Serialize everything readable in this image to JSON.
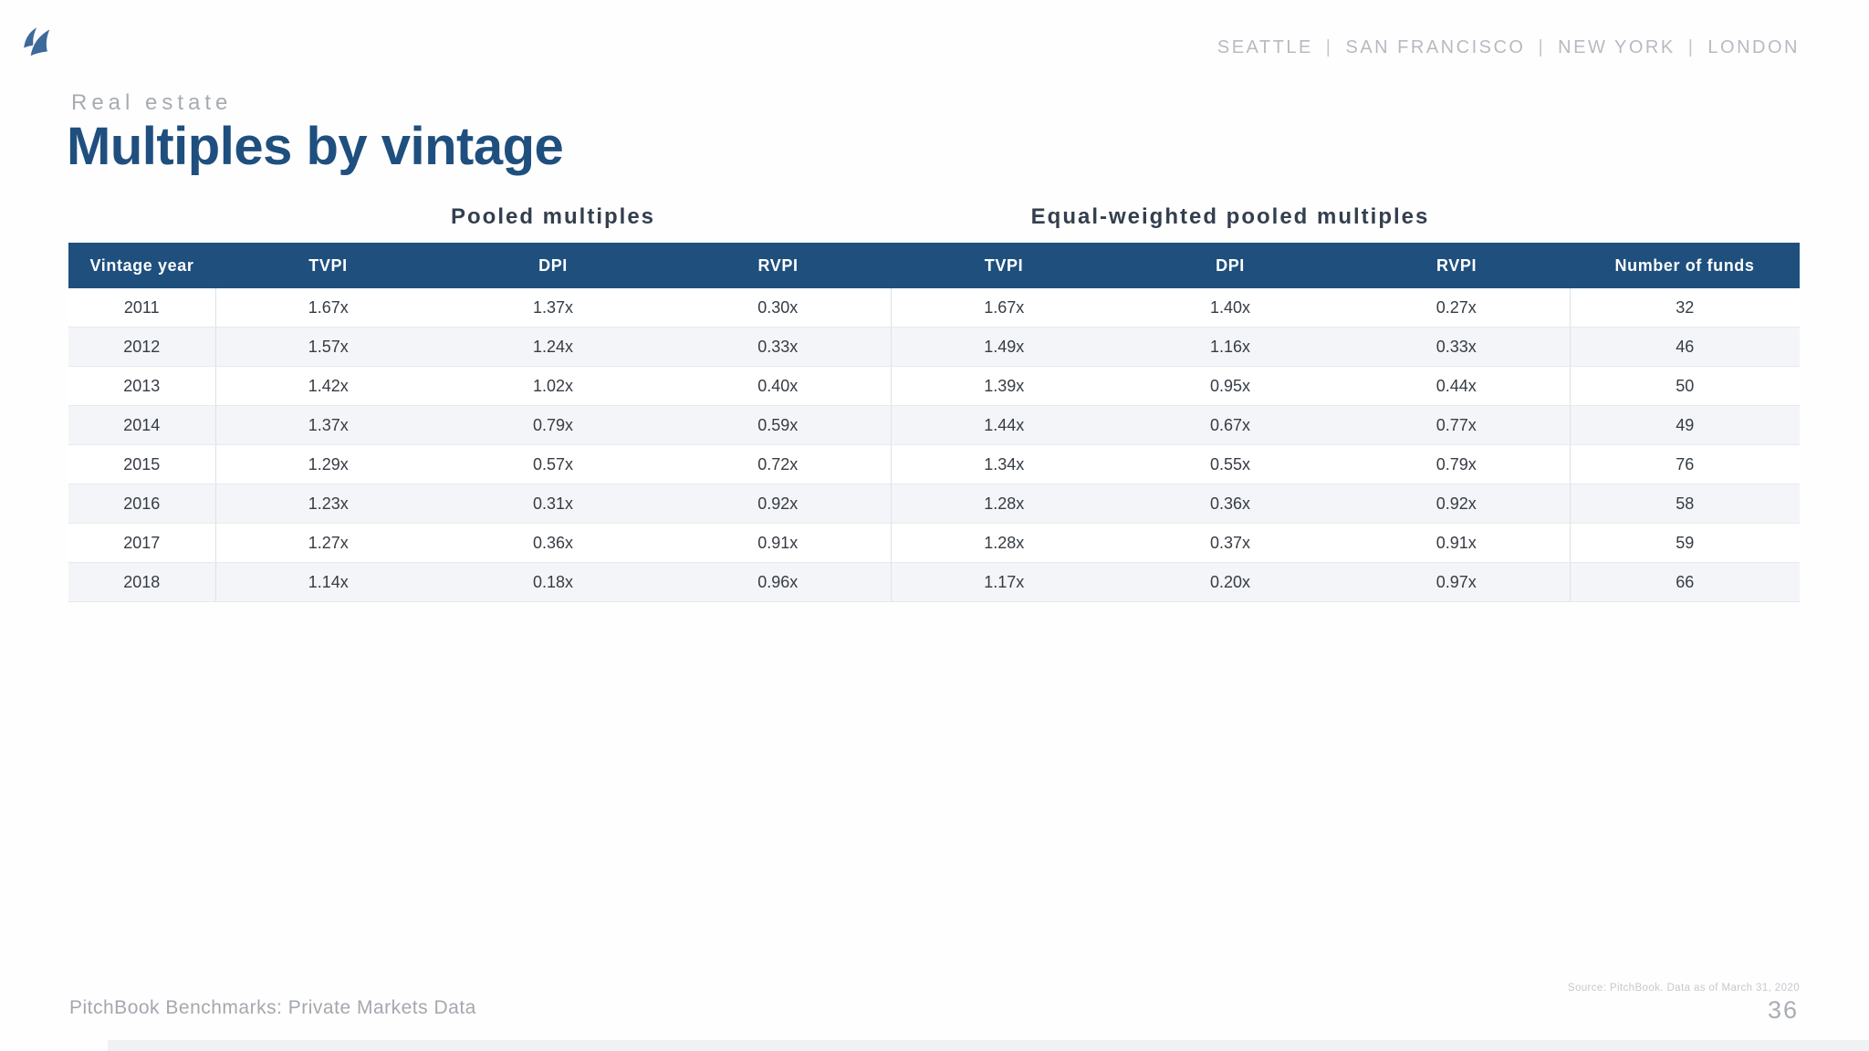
{
  "header": {
    "cities": [
      "SEATTLE",
      "SAN FRANCISCO",
      "NEW YORK",
      "LONDON"
    ]
  },
  "page": {
    "eyebrow": "Real estate",
    "title": "Multiples by vintage",
    "footer_left": "PitchBook Benchmarks: Private Markets Data",
    "source_note": "Source: PitchBook. Data as of March 31, 2020",
    "page_number": "36"
  },
  "table": {
    "group_headers": {
      "pooled": "Pooled multiples",
      "equal_weighted": "Equal-weighted pooled multiples"
    },
    "columns": [
      "Vintage year",
      "TVPI",
      "DPI",
      "RVPI",
      "TVPI",
      "DPI",
      "RVPI",
      "Number of funds"
    ],
    "rows": [
      [
        "2011",
        "1.67x",
        "1.37x",
        "0.30x",
        "1.67x",
        "1.40x",
        "0.27x",
        "32"
      ],
      [
        "2012",
        "1.57x",
        "1.24x",
        "0.33x",
        "1.49x",
        "1.16x",
        "0.33x",
        "46"
      ],
      [
        "2013",
        "1.42x",
        "1.02x",
        "0.40x",
        "1.39x",
        "0.95x",
        "0.44x",
        "50"
      ],
      [
        "2014",
        "1.37x",
        "0.79x",
        "0.59x",
        "1.44x",
        "0.67x",
        "0.77x",
        "49"
      ],
      [
        "2015",
        "1.29x",
        "0.57x",
        "0.72x",
        "1.34x",
        "0.55x",
        "0.79x",
        "76"
      ],
      [
        "2016",
        "1.23x",
        "0.31x",
        "0.92x",
        "1.28x",
        "0.36x",
        "0.92x",
        "58"
      ],
      [
        "2017",
        "1.27x",
        "0.36x",
        "0.91x",
        "1.28x",
        "0.37x",
        "0.91x",
        "59"
      ],
      [
        "2018",
        "1.14x",
        "0.18x",
        "0.96x",
        "1.17x",
        "0.20x",
        "0.97x",
        "66"
      ]
    ]
  },
  "colors": {
    "table_header_bar": "#1e4f7d",
    "title_blue": "#1f4f7e",
    "logo_blue": "#3d6a9a",
    "row_stripe": "#f4f5f8",
    "heading_slate": "#333f4e",
    "muted_gray": "#a7abb2"
  }
}
